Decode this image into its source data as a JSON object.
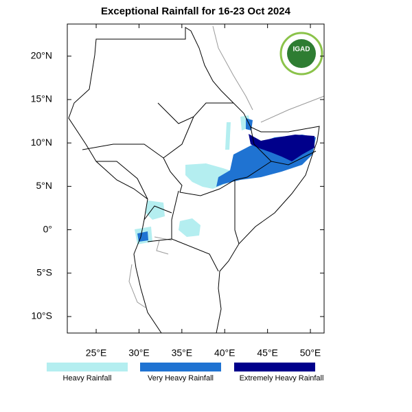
{
  "map": {
    "title": "Exceptional Rainfall for 16-23 Oct 2024",
    "logo_text": "IGAD",
    "xlim": [
      21.63,
      51.6
    ],
    "ylim": [
      -11.9,
      23.7
    ],
    "xticks": [
      {
        "value": 25,
        "label": "25°E"
      },
      {
        "value": 30,
        "label": "30°E"
      },
      {
        "value": 35,
        "label": "35°E"
      },
      {
        "value": 40,
        "label": "40°E"
      },
      {
        "value": 45,
        "label": "45°E"
      },
      {
        "value": 50,
        "label": "50°E"
      }
    ],
    "yticks": [
      {
        "value": 20,
        "label": "20°N"
      },
      {
        "value": 15,
        "label": "15°N"
      },
      {
        "value": 10,
        "label": "10°N"
      },
      {
        "value": 5,
        "label": "5°N"
      },
      {
        "value": 0,
        "label": "0°"
      },
      {
        "value": -5,
        "label": "5°S"
      },
      {
        "value": -10,
        "label": "10°S"
      }
    ],
    "legend": [
      {
        "label": "Heavy Rainfall",
        "color": "#b4eef0"
      },
      {
        "label": "Very Heavy Rainfall",
        "color": "#1f73d2"
      },
      {
        "label": "Extremely Heavy Rainfall",
        "color": "#00008b"
      }
    ]
  }
}
